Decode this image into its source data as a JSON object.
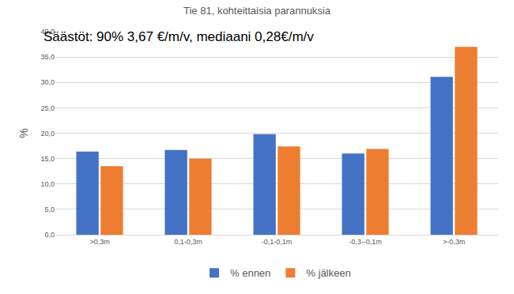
{
  "chart_data": {
    "type": "bar",
    "title": "Tie 81, kohteittaisia parannuksia",
    "annotations": [
      "Säästöt: 90% 3,67 €/m/v, mediaani 0,28€/m/v"
    ],
    "y_label": "%",
    "categories": [
      ">0,3m",
      "0,1-0,3m",
      "-0,1-0,1m",
      "-0,3--0,1m",
      ">-0,3m"
    ],
    "series": [
      {
        "name": "% ennen",
        "color": "#4472c4",
        "values": [
          16.4,
          16.7,
          19.8,
          16.0,
          31.1
        ]
      },
      {
        "name": "% jälkeen",
        "color": "#ed7d31",
        "values": [
          13.5,
          15.0,
          17.4,
          16.9,
          37.0
        ]
      }
    ],
    "ylim": [
      0,
      40
    ],
    "yticks": [
      {
        "value": 0,
        "label": "0,0"
      },
      {
        "value": 5,
        "label": "5,0"
      },
      {
        "value": 10,
        "label": "10,0"
      },
      {
        "value": 15,
        "label": "15,0"
      },
      {
        "value": 20,
        "label": "20,0"
      },
      {
        "value": 25,
        "label": "25,0"
      },
      {
        "value": 30,
        "label": "30,0"
      },
      {
        "value": 35,
        "label": "35,0"
      },
      {
        "value": 40,
        "label": "40,0"
      }
    ],
    "grid": true,
    "legend": "bottom"
  }
}
